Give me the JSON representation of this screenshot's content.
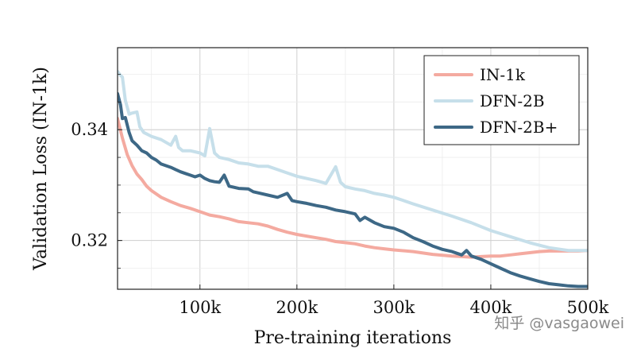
{
  "chart_data": {
    "type": "line",
    "xlabel": "Pre-training iterations",
    "ylabel": "Validation Loss (IN-1k)",
    "xlim": [
      15000,
      500000
    ],
    "ylim": [
      0.3112,
      0.3548
    ],
    "xticks": [
      100000,
      200000,
      300000,
      400000,
      500000
    ],
    "xtick_labels": [
      "100k",
      "200k",
      "300k",
      "400k",
      "500k"
    ],
    "yticks": [
      0.32,
      0.34
    ],
    "ytick_labels": [
      "0.32",
      "0.34"
    ],
    "grid": true,
    "legend_position": "top-right",
    "series": [
      {
        "name": "IN-1k",
        "color": "#f4aaa0",
        "x": [
          15000,
          20000,
          25000,
          30000,
          35000,
          40000,
          45000,
          50000,
          60000,
          70000,
          80000,
          90000,
          100000,
          110000,
          120000,
          130000,
          140000,
          150000,
          160000,
          170000,
          180000,
          190000,
          200000,
          210000,
          220000,
          230000,
          240000,
          250000,
          260000,
          270000,
          280000,
          290000,
          300000,
          320000,
          340000,
          360000,
          370000,
          380000,
          390000,
          400000,
          410000,
          420000,
          430000,
          440000,
          450000,
          460000,
          470000,
          480000,
          490000,
          500000
        ],
        "y": [
          0.342,
          0.3385,
          0.3355,
          0.3335,
          0.332,
          0.331,
          0.3298,
          0.329,
          0.3278,
          0.327,
          0.3263,
          0.3258,
          0.3252,
          0.3246,
          0.3243,
          0.3239,
          0.3234,
          0.3232,
          0.323,
          0.3226,
          0.322,
          0.3215,
          0.3211,
          0.3208,
          0.3205,
          0.3202,
          0.3198,
          0.3196,
          0.3194,
          0.319,
          0.3187,
          0.3185,
          0.3183,
          0.318,
          0.3175,
          0.3172,
          0.3171,
          0.317,
          0.3171,
          0.3172,
          0.3172,
          0.3174,
          0.3176,
          0.3178,
          0.318,
          0.3181,
          0.3181,
          0.3181,
          0.3181,
          0.3182
        ]
      },
      {
        "name": "DFN-2B",
        "color": "#c6dfea",
        "x": [
          15000,
          18000,
          20000,
          23000,
          27000,
          30000,
          35000,
          38000,
          42000,
          50000,
          60000,
          70000,
          75000,
          78000,
          82000,
          90000,
          100000,
          105000,
          110000,
          115000,
          120000,
          130000,
          140000,
          150000,
          160000,
          170000,
          180000,
          190000,
          200000,
          210000,
          220000,
          230000,
          240000,
          245000,
          250000,
          260000,
          270000,
          280000,
          290000,
          300000,
          310000,
          320000,
          340000,
          360000,
          380000,
          400000,
          420000,
          440000,
          460000,
          480000,
          500000
        ],
        "y": [
          0.3505,
          0.3498,
          0.3495,
          0.3453,
          0.3428,
          0.343,
          0.3432,
          0.3405,
          0.3395,
          0.3388,
          0.3382,
          0.3372,
          0.3388,
          0.3368,
          0.3362,
          0.3362,
          0.3358,
          0.3353,
          0.3402,
          0.3358,
          0.335,
          0.3346,
          0.334,
          0.3338,
          0.3334,
          0.3334,
          0.3328,
          0.3322,
          0.3316,
          0.3312,
          0.3308,
          0.3303,
          0.3333,
          0.3305,
          0.3297,
          0.3293,
          0.329,
          0.3285,
          0.3282,
          0.3278,
          0.3272,
          0.3266,
          0.3255,
          0.3244,
          0.3232,
          0.3218,
          0.3207,
          0.3196,
          0.3187,
          0.3182,
          0.3182
        ]
      },
      {
        "name": "DFN-2B+",
        "color": "#3d6886",
        "x": [
          15000,
          18000,
          20000,
          23000,
          27000,
          30000,
          35000,
          40000,
          45000,
          50000,
          55000,
          60000,
          65000,
          70000,
          75000,
          80000,
          85000,
          90000,
          95000,
          100000,
          105000,
          110000,
          115000,
          120000,
          125000,
          130000,
          140000,
          150000,
          155000,
          160000,
          170000,
          180000,
          190000,
          195000,
          200000,
          210000,
          220000,
          230000,
          240000,
          250000,
          260000,
          265000,
          270000,
          280000,
          290000,
          300000,
          310000,
          320000,
          330000,
          340000,
          350000,
          360000,
          370000,
          375000,
          380000,
          390000,
          400000,
          410000,
          420000,
          430000,
          440000,
          450000,
          460000,
          470000,
          480000,
          490000,
          500000
        ],
        "y": [
          0.3465,
          0.3445,
          0.342,
          0.3422,
          0.3395,
          0.338,
          0.3372,
          0.3362,
          0.3358,
          0.335,
          0.3345,
          0.3338,
          0.3335,
          0.3332,
          0.3328,
          0.3324,
          0.3321,
          0.3318,
          0.3315,
          0.3318,
          0.3312,
          0.3308,
          0.3306,
          0.3305,
          0.3318,
          0.3298,
          0.3294,
          0.3293,
          0.3288,
          0.3286,
          0.3282,
          0.3278,
          0.3285,
          0.3272,
          0.327,
          0.3267,
          0.3263,
          0.326,
          0.3255,
          0.3252,
          0.3248,
          0.3236,
          0.3242,
          0.3232,
          0.3225,
          0.3222,
          0.3215,
          0.3205,
          0.3198,
          0.319,
          0.3184,
          0.318,
          0.3174,
          0.3182,
          0.3172,
          0.3166,
          0.3158,
          0.315,
          0.3142,
          0.3136,
          0.3131,
          0.3126,
          0.3122,
          0.312,
          0.3118,
          0.3117,
          0.3117
        ]
      }
    ],
    "watermark": "知乎 @vasgaowei"
  }
}
